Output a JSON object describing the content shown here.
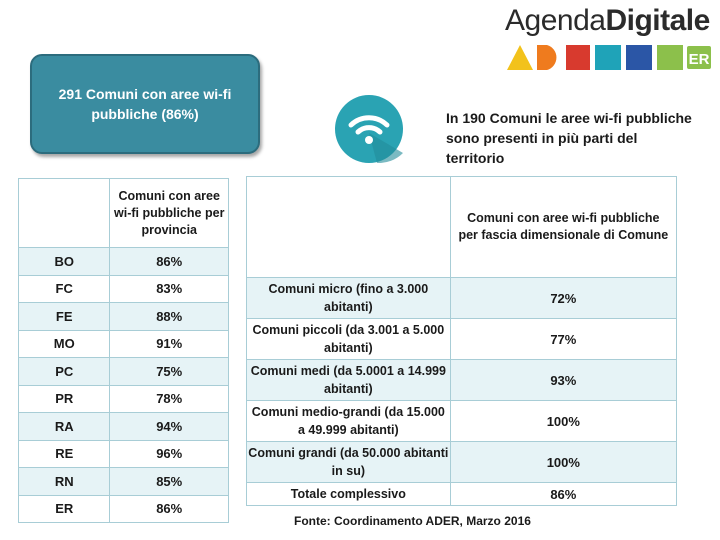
{
  "logo": {
    "text_regular": "Agenda",
    "text_bold": "Digitale",
    "marks_label": "ADER",
    "badge": "ER",
    "colors": [
      "#f2c21b",
      "#ef7b1e",
      "#d83a2e",
      "#1fa3b8",
      "#2b56a6",
      "#8cc04b"
    ]
  },
  "callout": {
    "text": "291 Comuni con aree wi-fi pubbliche (86%)"
  },
  "wifi_icon": {
    "name": "wifi-icon",
    "color": "#2aa3b3"
  },
  "intro": {
    "text": "In 190 Comuni le aree wi-fi pubbliche sono presenti in più parti del territorio"
  },
  "province_table": {
    "header": "Comuni con aree wi-fi pubbliche per provincia",
    "rows": [
      {
        "label": "BO",
        "value": "86%"
      },
      {
        "label": "FC",
        "value": "83%"
      },
      {
        "label": "FE",
        "value": "88%"
      },
      {
        "label": "MO",
        "value": "91%"
      },
      {
        "label": "PC",
        "value": "75%"
      },
      {
        "label": "PR",
        "value": "78%"
      },
      {
        "label": "RA",
        "value": "94%"
      },
      {
        "label": "RE",
        "value": "96%"
      },
      {
        "label": "RN",
        "value": "85%"
      },
      {
        "label": "ER",
        "value": "86%"
      }
    ]
  },
  "size_table": {
    "header": "Comuni con aree wi-fi pubbliche per fascia dimensionale di Comune",
    "rows": [
      {
        "label": "Comuni micro (fino a 3.000 abitanti)",
        "value": "72%"
      },
      {
        "label": "Comuni piccoli (da 3.001 a 5.000 abitanti)",
        "value": "77%"
      },
      {
        "label": "Comuni medi (da 5.0001 a 14.999 abitanti)",
        "value": "93%"
      },
      {
        "label": "Comuni medio-grandi (da 15.000 a 49.999 abitanti)",
        "value": "100%"
      },
      {
        "label": "Comuni grandi (da 50.000 abitanti in su)",
        "value": "100%"
      },
      {
        "label": "Totale complessivo",
        "value": "86%"
      }
    ]
  },
  "source": {
    "text": "Fonte: Coordinamento ADER, Marzo 2016"
  }
}
